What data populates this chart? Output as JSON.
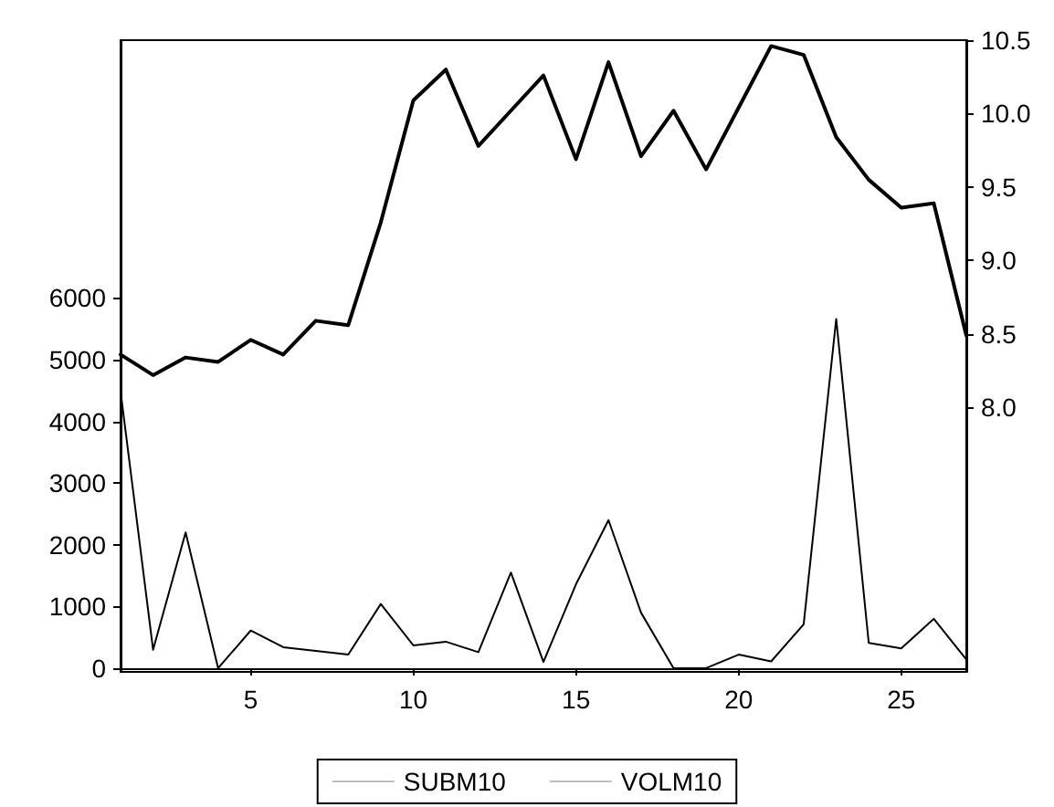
{
  "chart_data": {
    "type": "line",
    "x": [
      1,
      2,
      3,
      4,
      5,
      6,
      7,
      8,
      9,
      10,
      11,
      12,
      13,
      14,
      15,
      16,
      17,
      18,
      19,
      20,
      21,
      22,
      23,
      24,
      25,
      26,
      27
    ],
    "series": [
      {
        "name": "SUBM10",
        "color": "#000000",
        "axis": "y2",
        "values": [
          8.36,
          8.22,
          8.34,
          8.31,
          8.46,
          8.36,
          8.59,
          8.56,
          9.26,
          10.09,
          10.3,
          9.78,
          10.02,
          10.26,
          9.69,
          10.35,
          9.71,
          10.02,
          9.62,
          10.04,
          10.46,
          10.4,
          9.84,
          9.55,
          9.36,
          9.39,
          8.49
        ]
      },
      {
        "name": "VOLM10",
        "color": "#000000",
        "values": [
          4490,
          300,
          2200,
          0,
          610,
          340,
          280,
          220,
          1040,
          370,
          430,
          260,
          1550,
          100,
          1360,
          2400,
          900,
          0,
          0,
          220,
          110,
          710,
          5660,
          410,
          320,
          800,
          140
        ]
      }
    ],
    "xlim": [
      1,
      27
    ],
    "xticks": [
      5,
      10,
      15,
      20,
      25
    ],
    "ylim": [
      -60,
      10180
    ],
    "yticks": [
      0,
      1000,
      2000,
      3000,
      4000,
      5000,
      6000
    ],
    "y2lim": [
      6.2,
      10.5
    ],
    "y2ticks": [
      {
        "value": 8,
        "label": "8.0"
      },
      8.5,
      {
        "value": 9,
        "label": "9.0"
      },
      9.5,
      {
        "value": 10,
        "label": "10.0"
      },
      10.5
    ],
    "grid": false,
    "legend": "bottom",
    "marker": "none",
    "line_style": "solid"
  }
}
